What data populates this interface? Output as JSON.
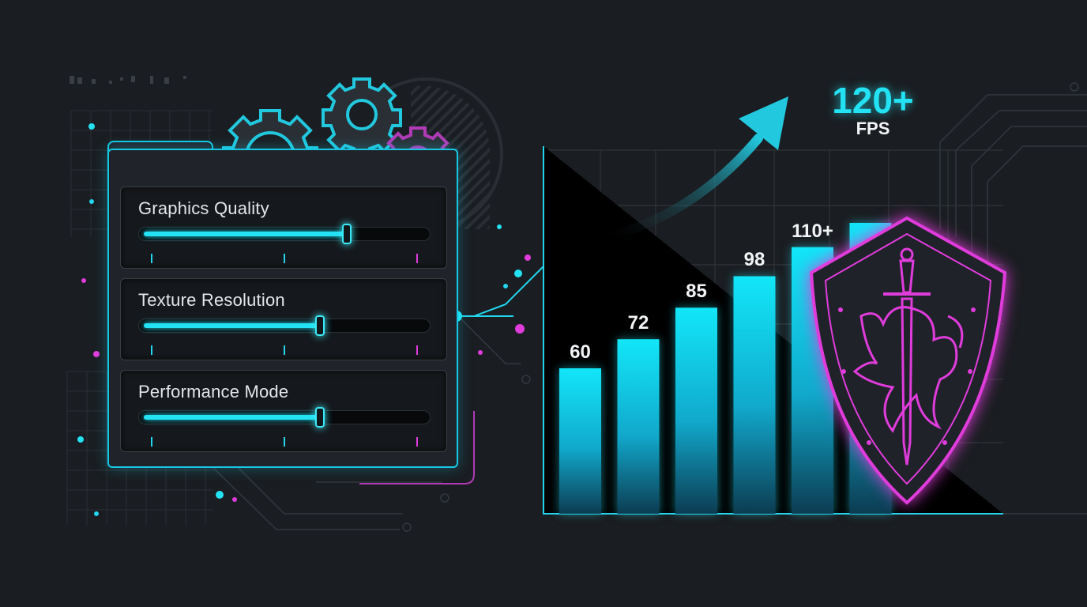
{
  "settings": [
    {
      "label": "Graphics Quality",
      "value": 0.71
    },
    {
      "label": "Texture Resolution",
      "value": 0.62
    },
    {
      "label": "Performance Mode",
      "value": 0.62
    }
  ],
  "colors": {
    "accent": "#22e2f4",
    "magenta": "#e03cdc",
    "background": "#1a1d21"
  },
  "icons": [
    "gear-icon",
    "trend-arrow-icon",
    "shield-crest-icon"
  ],
  "chart_data": {
    "type": "bar",
    "categories": [
      "",
      "",
      "",
      "",
      "",
      ""
    ],
    "values": [
      60,
      72,
      85,
      98,
      110,
      120
    ],
    "data_labels": [
      "60",
      "72",
      "85",
      "98",
      "110+",
      ""
    ],
    "title": "",
    "xlabel": "",
    "ylabel": "",
    "ylim": [
      0,
      150
    ],
    "grid": true,
    "headline_value": "120+",
    "headline_unit": "FPS"
  }
}
